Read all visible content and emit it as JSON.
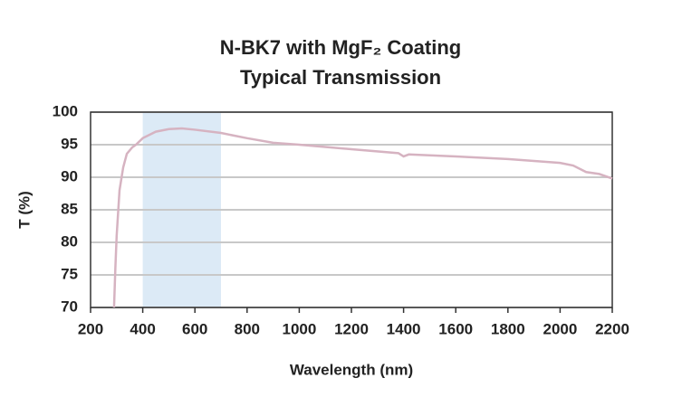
{
  "chart_data": {
    "type": "line",
    "title": "N-BK7 with MgF₂ Coating",
    "subtitle": "Typical Transmission",
    "x_label": "Wavelength (nm)",
    "y_label": "T (%)",
    "x": [
      290,
      295,
      300,
      311,
      325,
      339,
      360,
      374,
      400,
      450,
      500,
      550,
      600,
      700,
      800,
      900,
      1000,
      1200,
      1380,
      1400,
      1420,
      1600,
      1800,
      2000,
      2050,
      2100,
      2150,
      2200
    ],
    "series": [
      {
        "name": "T",
        "color": "#d6b3c1",
        "values": [
          70,
          76,
          81,
          88,
          91.5,
          93.6,
          94.6,
          95,
          96,
          97,
          97.4,
          97.5,
          97.3,
          96.8,
          96,
          95.3,
          95,
          94.3,
          93.7,
          93.2,
          93.5,
          93.2,
          92.8,
          92.2,
          91.8,
          90.8,
          90.5,
          89.8
        ]
      }
    ],
    "highlight_range": [
      400,
      700
    ],
    "highlight_color": "#dceaf6",
    "xlim": [
      200,
      2200
    ],
    "xticks": [
      200,
      400,
      600,
      800,
      1000,
      1200,
      1400,
      1600,
      1800,
      2000,
      2200
    ],
    "ylim": [
      70,
      100
    ],
    "yticks": [
      70,
      75,
      80,
      85,
      90,
      95,
      100
    ],
    "grid": true
  }
}
